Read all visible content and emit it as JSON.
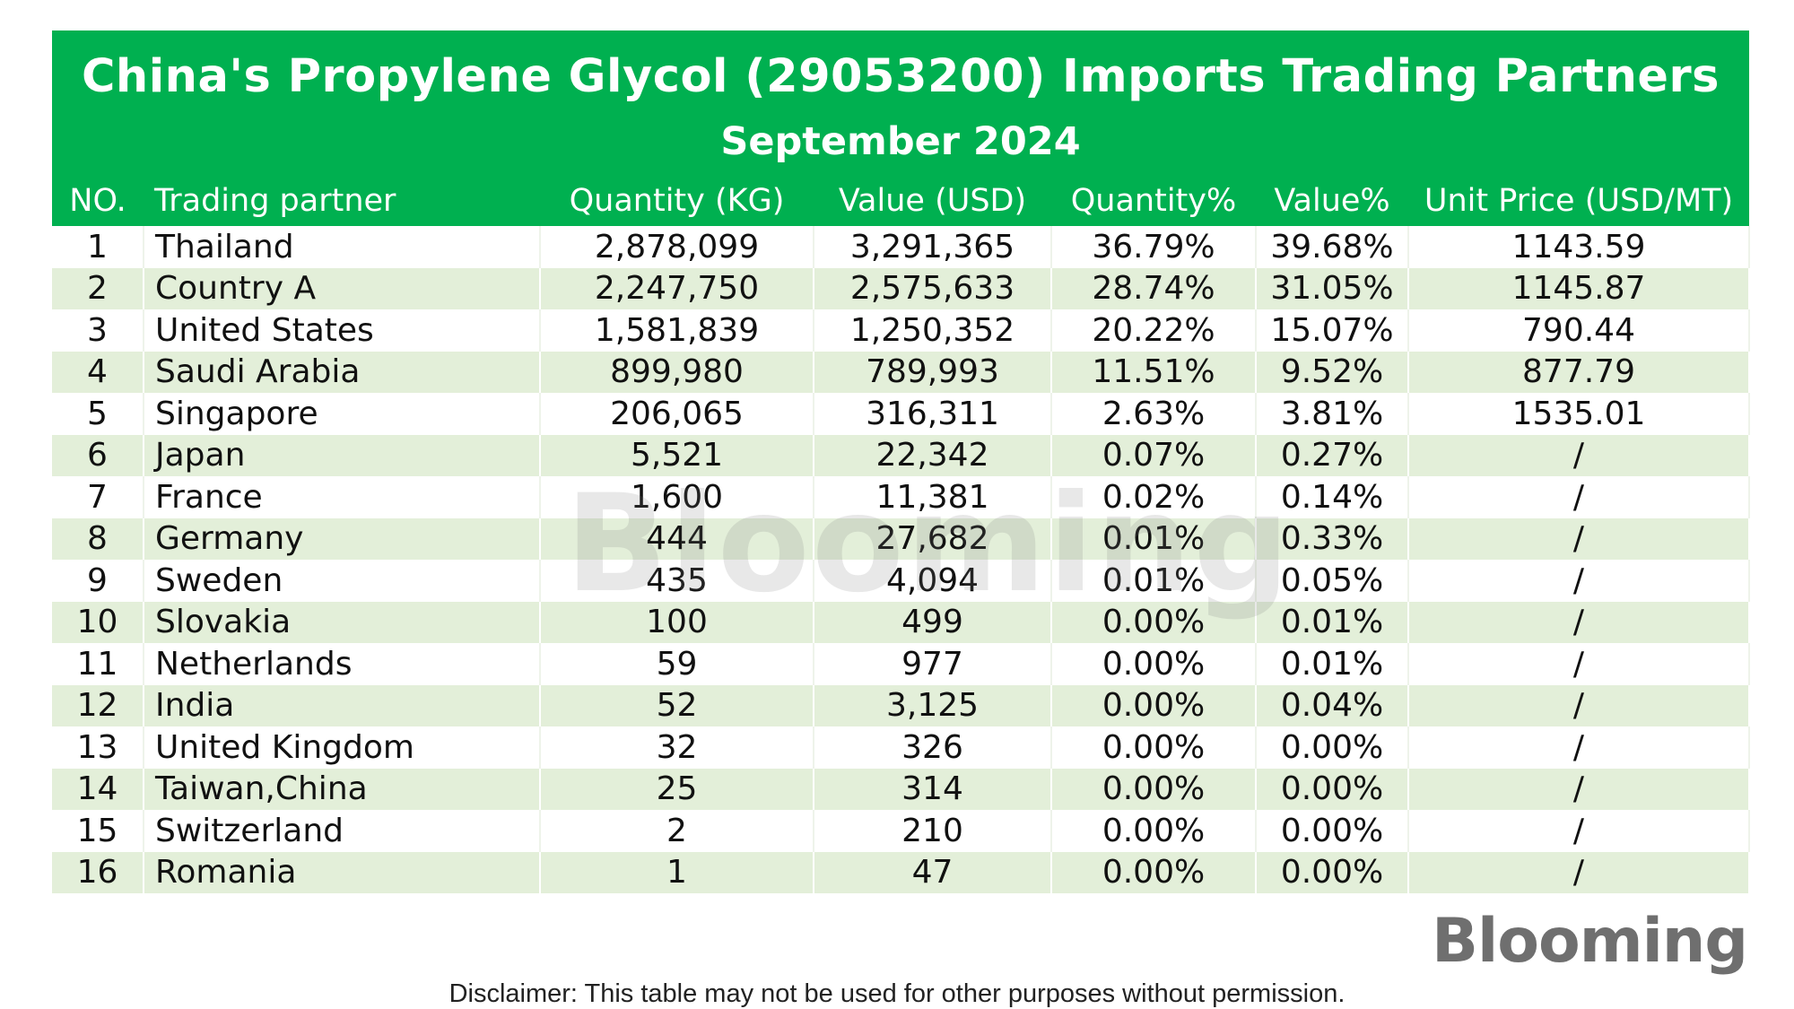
{
  "title": "China's Propylene Glycol (29053200) Imports Trading Partners",
  "subtitle": "September 2024",
  "columns": [
    "NO.",
    "Trading partner",
    "Quantity (KG)",
    "Value (USD)",
    "Quantity%",
    "Value%",
    "Unit Price (USD/MT)"
  ],
  "rows": [
    [
      "1",
      "Thailand",
      "2,878,099",
      "3,291,365",
      "36.79%",
      "39.68%",
      "1143.59"
    ],
    [
      "2",
      "Country A",
      "2,247,750",
      "2,575,633",
      "28.74%",
      "31.05%",
      "1145.87"
    ],
    [
      "3",
      "United States",
      "1,581,839",
      "1,250,352",
      "20.22%",
      "15.07%",
      "790.44"
    ],
    [
      "4",
      "Saudi Arabia",
      "899,980",
      "789,993",
      "11.51%",
      "9.52%",
      "877.79"
    ],
    [
      "5",
      "Singapore",
      "206,065",
      "316,311",
      "2.63%",
      "3.81%",
      "1535.01"
    ],
    [
      "6",
      "Japan",
      "5,521",
      "22,342",
      "0.07%",
      "0.27%",
      "/"
    ],
    [
      "7",
      "France",
      "1,600",
      "11,381",
      "0.02%",
      "0.14%",
      "/"
    ],
    [
      "8",
      "Germany",
      "444",
      "27,682",
      "0.01%",
      "0.33%",
      "/"
    ],
    [
      "9",
      "Sweden",
      "435",
      "4,094",
      "0.01%",
      "0.05%",
      "/"
    ],
    [
      "10",
      "Slovakia",
      "100",
      "499",
      "0.00%",
      "0.01%",
      "/"
    ],
    [
      "11",
      "Netherlands",
      "59",
      "977",
      "0.00%",
      "0.01%",
      "/"
    ],
    [
      "12",
      "India",
      "52",
      "3,125",
      "0.00%",
      "0.04%",
      "/"
    ],
    [
      "13",
      "United Kingdom",
      "32",
      "326",
      "0.00%",
      "0.00%",
      "/"
    ],
    [
      "14",
      "Taiwan,China",
      "25",
      "314",
      "0.00%",
      "0.00%",
      "/"
    ],
    [
      "15",
      "Switzerland",
      "2",
      "210",
      "0.00%",
      "0.00%",
      "/"
    ],
    [
      "16",
      "Romania",
      "1",
      "47",
      "0.00%",
      "0.00%",
      "/"
    ]
  ],
  "watermark": "Blooming",
  "logo": "Blooming",
  "disclaimer": "Disclaimer: This table may not be used for other purposes without permission.",
  "colors": {
    "header_bg": "#00b050",
    "row_alt_bg": "#e3efd9",
    "logo_text": "#6f6f6f",
    "logo_eye": "#39b54a"
  }
}
